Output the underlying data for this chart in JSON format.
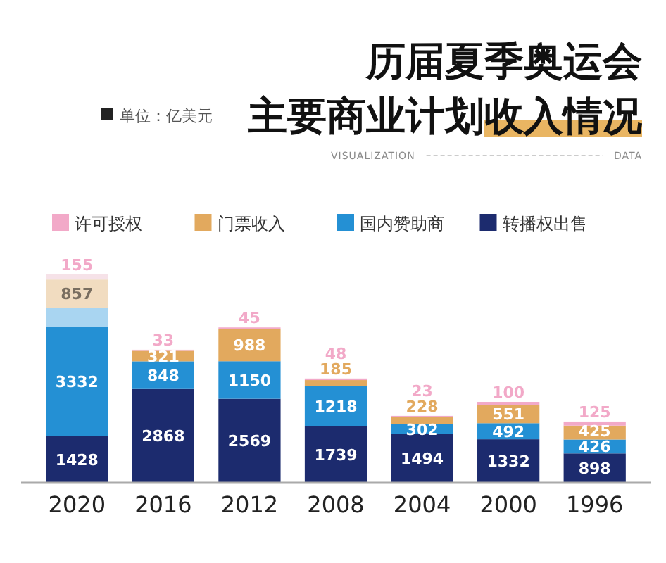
{
  "chart_data": {
    "type": "bar",
    "title": "历届夏季奥运会主要商业计划收入情况",
    "annotations": [
      "单位：亿美元",
      "DATA",
      "VISUALIZATION"
    ],
    "categories": [
      "2020",
      "2016",
      "2012",
      "2008",
      "2004",
      "2000",
      "1996"
    ],
    "stacked": true,
    "legend": "top",
    "series": [
      {
        "name": "转播权出售",
        "color": "#1c2b6e",
        "values": [
          1428,
          2868,
          2569,
          1739,
          1494,
          1332,
          898
        ],
        "value_labels": [
          "1428",
          "2868",
          "2569",
          "1739",
          "1494",
          "1332",
          "898"
        ]
      },
      {
        "name": "国内赞助商",
        "color": "#2490d4",
        "values": [
          3332,
          848,
          1150,
          1218,
          302,
          492,
          426
        ],
        "value_labels": [
          "3332",
          "848",
          "1150",
          "1218",
          "302",
          "492",
          "426"
        ]
      },
      {
        "color": "#a9d5f1",
        "values": [
          600,
          null,
          null,
          null,
          null,
          null,
          null
        ]
      },
      {
        "name": "门票收入",
        "color": "#e2a95e",
        "colors": [
          "#f1dcc0",
          "#e2a95e",
          "#e2a95e",
          "#e2a95e",
          "#e2a95e",
          "#e2a95e",
          "#e2a95e"
        ],
        "values": [
          857,
          321,
          988,
          185,
          228,
          551,
          425
        ],
        "value_labels": [
          "857",
          "321",
          "988",
          "185",
          "228",
          "551",
          "425"
        ]
      },
      {
        "name": "许可授权",
        "color": "#f2a9c8",
        "colors": [
          "#f6e2e8",
          "#f2a9c8",
          "#f2a9c8",
          "#f2a9c8",
          "#f2a9c8",
          "#f2a9c8",
          "#f2a9c8"
        ],
        "values": [
          155,
          33,
          45,
          48,
          23,
          100,
          125
        ],
        "value_labels": [
          "155",
          "33",
          "45",
          "48",
          "23",
          "100",
          "125"
        ]
      }
    ]
  }
}
